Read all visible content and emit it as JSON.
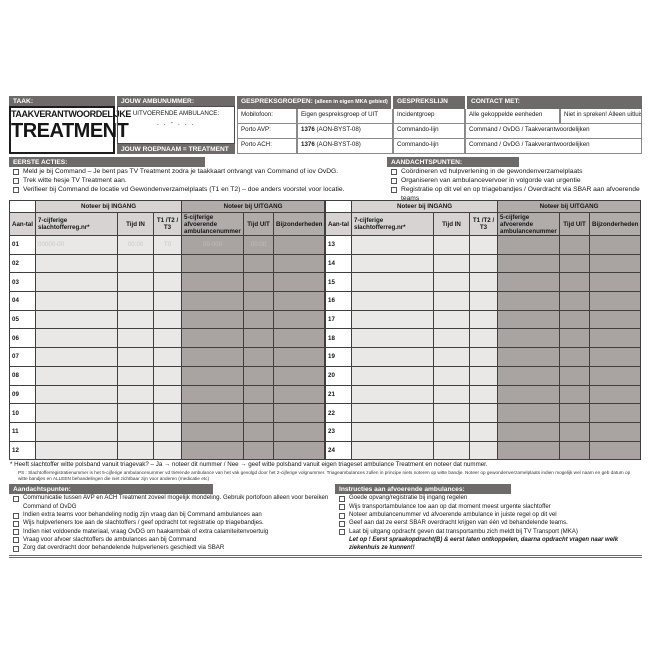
{
  "header": {
    "taak_label": "TAAK:",
    "role_subtitle": "TAAKVERANTWOORDELIJKE",
    "role_title": "TREATMENT",
    "ambu_label": "JOUW AMBUNUMMER:",
    "uitvoerende_label": "UITVOERENDE AMBULANCE:",
    "ambu_placeholder": ". . - . . .",
    "roepnaam_label": "JOUW ROEPNAAM = TREATMENT",
    "gespreksgroepen_label": "GESPREKSGROEPEN:",
    "gespreksgroepen_note": "(alleen in eigen MKA gebied)",
    "gesprekslijn_label": "GESPREKSLIJN",
    "contact_label": "CONTACT MET:",
    "rows": [
      {
        "device": "Mobilofoon:",
        "group": "Eigen gespreksgroep of UIT",
        "line": "Incidentgroep",
        "contact": "Alle gekoppelde eenheden",
        "contact_note": "Niet in spreken! Alleen uitluisteren"
      },
      {
        "device": "Porto AVP:",
        "group_num": "1376",
        "group_rest": "(AON-BYST-08)",
        "line": "Commando-lijn",
        "contact": "Command / OvDG / Taakverantwoordelijken"
      },
      {
        "device": "Porto ACH:",
        "group_num": "1376",
        "group_rest": "(AON-BYST-08)",
        "line": "Commando-lijn",
        "contact": "Command / OvDG / Taakverantwoordelijken"
      }
    ]
  },
  "eerste_acties": {
    "label": "EERSTE ACTIES:",
    "items": [
      "Meld je bij Command – Je bent pas TV Treatment zodra je taakkaart ontvangt van Command of iov OvDG.",
      "Trek witte hesje TV Treatment aan.",
      "Verifieer bij Command de locatie vd Gewondenverzamelplaats (T1 en T2) – doe anders voorstel voor locatie."
    ]
  },
  "aandachtspunten_top": {
    "label": "AANDACHTSPUNTEN:",
    "items": [
      "Coördineren vd hulpverlening in de gewondenverzamelplaats",
      "Organiseren van ambulancevervoer in volgorde van urgentie",
      "Registratie op dit vel en op triagebandjes / Overdracht via SBAR aan afvoerende teams"
    ]
  },
  "table": {
    "ingang_header": "Noteer bij INGANG",
    "uitgang_header": "Noteer bij UITGANG",
    "col_aantal": "Aan-tal",
    "col_regnr": "7-cijferige slachtofferreg.nr*",
    "col_tijd_in": "Tijd IN",
    "col_triage": "T1 /T2 / T3",
    "col_ambunr": "5-cijferige afvoerende ambulancenummer",
    "col_tijd_uit": "Tijd UIT",
    "col_bijz": "Bijzonderheden",
    "placeholder": {
      "regnr": "00000-00",
      "tijd_in": "00:00",
      "triage": "T0",
      "ambunr": "00-000",
      "tijd_uit": "00:00"
    },
    "rows_left": [
      "01",
      "02",
      "03",
      "04",
      "05",
      "06",
      "07",
      "08",
      "09",
      "10",
      "11",
      "12"
    ],
    "rows_right": [
      "13",
      "14",
      "15",
      "16",
      "17",
      "18",
      "19",
      "20",
      "21",
      "22",
      "23",
      "24"
    ]
  },
  "footnote": {
    "star_line": "* Heeft slachtoffer witte polsband vanuit triagevak? – Ja → noteer dit nummer  / Nee → geef witte polsband vanuit eigen triageset ambulance Treatment en noteer dat nummer.",
    "ps_line": "PS : Slachtofferregistratienummer is het 5-cijferige ambulancenummer vd triërende ambulance van het vak gevolgd door het 2-cijferige volgnummer. Triageambulances zullen in principe niets noteren op witte bandje. Noteer op gewondenverzamelplaats indien mogelijk wel naam en geb datum op witte bandjes en ALLEEN behandelingen die niet zichtbaar zijn voor anderen (medicatie etc)"
  },
  "aandachtspunten_bottom": {
    "label": "Aandachtspunten:",
    "items": [
      "Communicatie tussen AVP en ACH Treatment zoveel mogelijk mondeling. Gebruik portofoon alleen voor bereiken Command of OvDG",
      "Indien extra teams voor behandeling nodig zijn vraag dan bij Command ambulances aan",
      "Wijs hulpverleners toe aan de slachtoffers / geef opdracht tot registratie op triagebandjes.",
      "Indien niet voldoende materiaal, vraag OvDG om haakarmbak of extra calamiteitenvoertuig",
      "Vraag voor afvoer slachtoffers de ambulances aan bij Command",
      "Zorg dat overdracht door behandelende hulpverleners geschiedt via SBAR"
    ]
  },
  "instructies": {
    "label": "Instructies aan afvoerende ambulances:",
    "items": [
      "Goede opvang/registratie bij ingang regelen",
      "Wijs transportambulance toe aan op dat moment meest urgente slachtoffer",
      "Noteer ambulancenummer vd afvoerende ambulance in juiste regel op dit vel",
      "Geef aan dat ze eerst SBAR overdracht krijgen van één vd behandelende teams.",
      "Laat bij uitgang opdracht geven dat transportambu zich meldt bij TV Transport (MKA)"
    ],
    "note": "Let op ! Eerst spraakopdracht(B) & eerst laten ontkoppelen, daarna opdracht vragen naar welk ziekenhuis ze kunnen!!"
  }
}
